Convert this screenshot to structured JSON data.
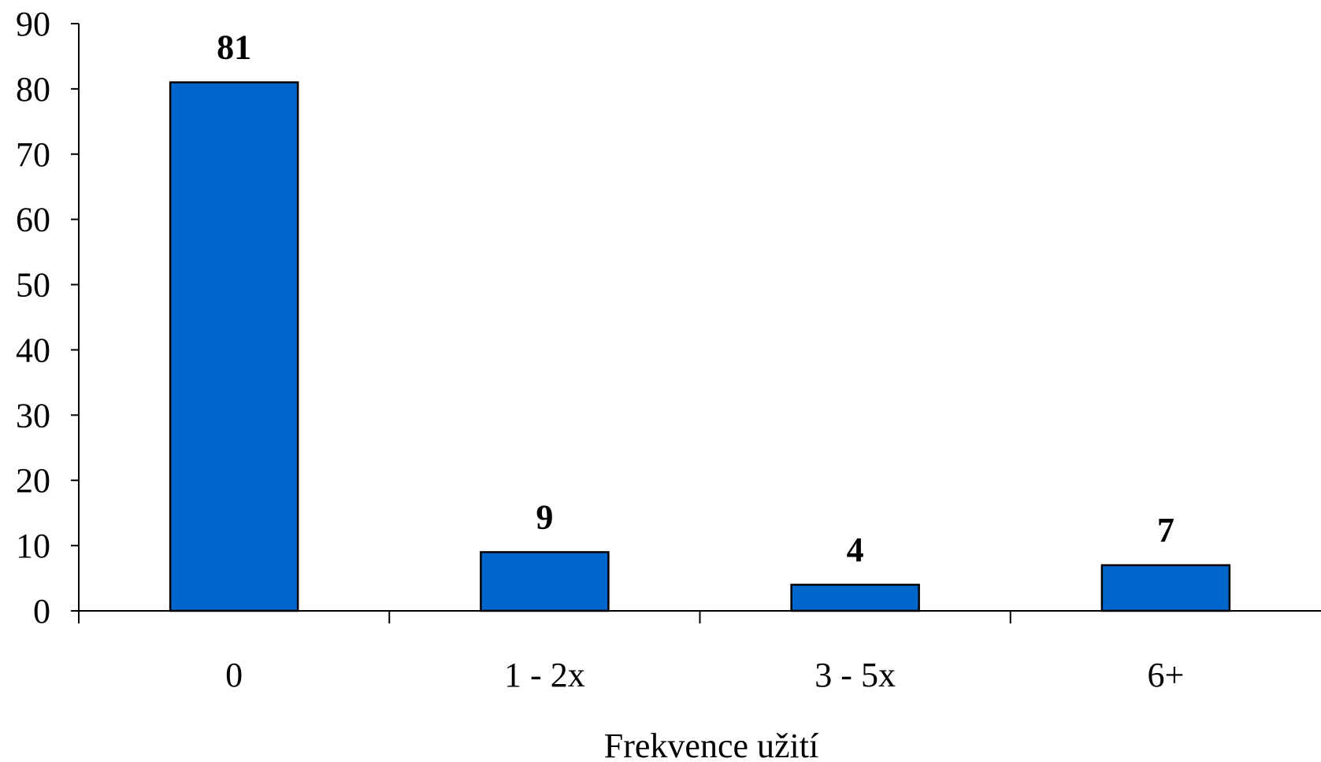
{
  "chart_data": {
    "type": "bar",
    "categories": [
      "0",
      "1 - 2x",
      "3 - 5x",
      "6+"
    ],
    "values": [
      81,
      9,
      4,
      7
    ],
    "data_labels": [
      "81",
      "9",
      "4",
      "7"
    ],
    "title": "",
    "xlabel": "Frekvence užití",
    "ylabel": "",
    "ylim": [
      0,
      90
    ],
    "yticks": [
      0,
      10,
      20,
      30,
      40,
      50,
      60,
      70,
      80,
      90
    ],
    "ytick_labels": [
      "0",
      "10",
      "20",
      "30",
      "40",
      "50",
      "60",
      "70",
      "80",
      "90"
    ],
    "grid": false,
    "legend": "none",
    "bar_color": "#0066CC",
    "bar_edge_color": "#000000"
  }
}
